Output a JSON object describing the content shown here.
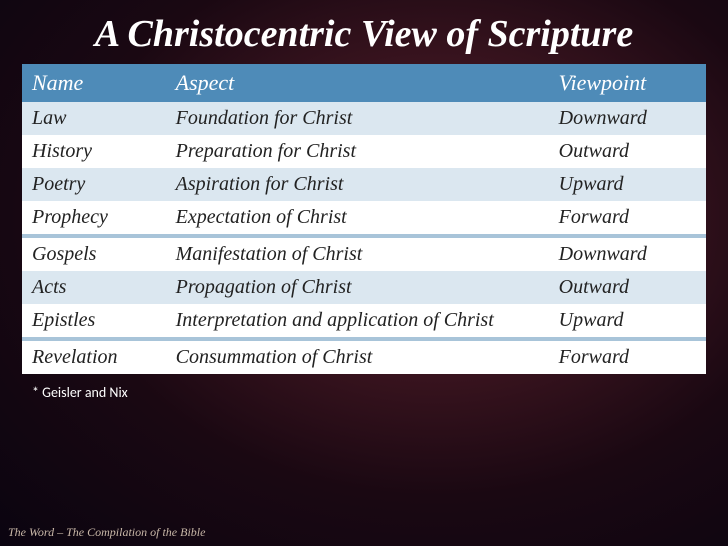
{
  "title": "A Christocentric View of Scripture",
  "columns": [
    "Name",
    "Aspect",
    "Viewpoint"
  ],
  "rows": [
    {
      "name": "Law",
      "aspect": "Foundation for Christ",
      "viewpoint": "Downward",
      "shade": "light"
    },
    {
      "name": "History",
      "aspect": "Preparation for Christ",
      "viewpoint": "Outward",
      "shade": "white"
    },
    {
      "name": "Poetry",
      "aspect": "Aspiration for Christ",
      "viewpoint": "Upward",
      "shade": "light"
    },
    {
      "name": "Prophecy",
      "aspect": "Expectation of Christ",
      "viewpoint": "Forward",
      "shade": "white"
    },
    {
      "divider": true
    },
    {
      "name": "Gospels",
      "aspect": "Manifestation of Christ",
      "viewpoint": "Downward",
      "shade": "white"
    },
    {
      "name": "Acts",
      "aspect": "Propagation of Christ",
      "viewpoint": "Outward",
      "shade": "light"
    },
    {
      "name": "Epistles",
      "aspect": "Interpretation and application of Christ",
      "viewpoint": "Upward",
      "shade": "white"
    },
    {
      "divider": true
    },
    {
      "name": "Revelation",
      "aspect": "Consummation of Christ",
      "viewpoint": "Forward",
      "shade": "white"
    }
  ],
  "footnote": "* Geisler and Nix",
  "bottom_caption": "The Word – The Compilation of the Bible",
  "styling": {
    "header_bg": "#4e8bb8",
    "header_color": "#ffffff",
    "light_row_bg": "#dbe7f0",
    "white_row_bg": "#ffffff",
    "divider_bg": "#a8c4d9",
    "title_color": "#ffffff",
    "title_fontsize": 38,
    "th_fontsize": 22,
    "td_fontsize": 20,
    "footnote_color": "#ffffff",
    "footnote_fontsize": 14,
    "caption_color": "#c9b8a8",
    "caption_fontsize": 12,
    "col_widths": {
      "name": "21%",
      "aspect": "56%",
      "viewpoint": "23%"
    }
  }
}
